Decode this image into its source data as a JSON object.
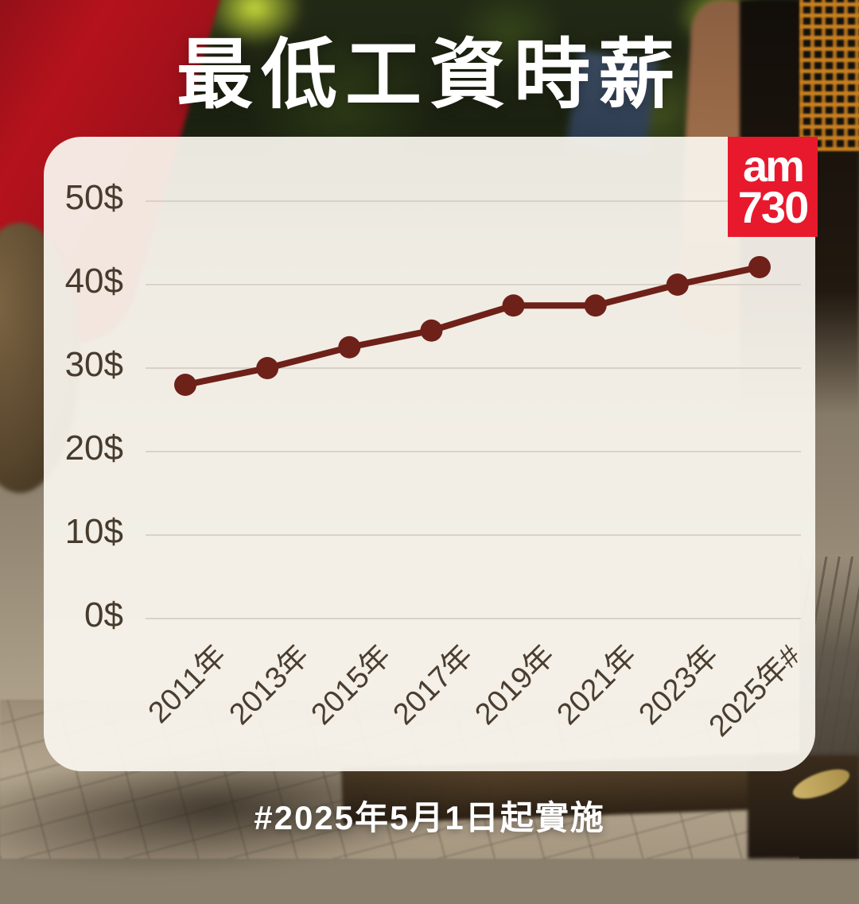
{
  "title": "最低工資時薪",
  "caption": "#2025年5月1日起實施",
  "logo": {
    "line1": "am",
    "line2": "730",
    "bg_color": "#e8192d",
    "text_color": "#ffffff"
  },
  "chart_data": {
    "type": "line",
    "title": "最低工資時薪",
    "x": [
      "2011年",
      "2013年",
      "2015年",
      "2017年",
      "2019年",
      "2021年",
      "2023年",
      "2025年#"
    ],
    "series": [
      {
        "name": "最低工資時薪",
        "values": [
          28,
          30,
          32.5,
          34.5,
          37.5,
          37.5,
          40,
          42.1
        ]
      }
    ],
    "yticks": [
      "50$",
      "40$",
      "30$",
      "20$",
      "10$",
      "0$"
    ],
    "ytick_values": [
      50,
      40,
      30,
      20,
      10,
      0
    ],
    "ylim": [
      0,
      50
    ],
    "grid": true,
    "legend": "none",
    "line_color": "#6e2119",
    "marker_color": "#6e2119",
    "gridline_color": "#d8d2c9",
    "axis_label_color": "#473b2e"
  }
}
